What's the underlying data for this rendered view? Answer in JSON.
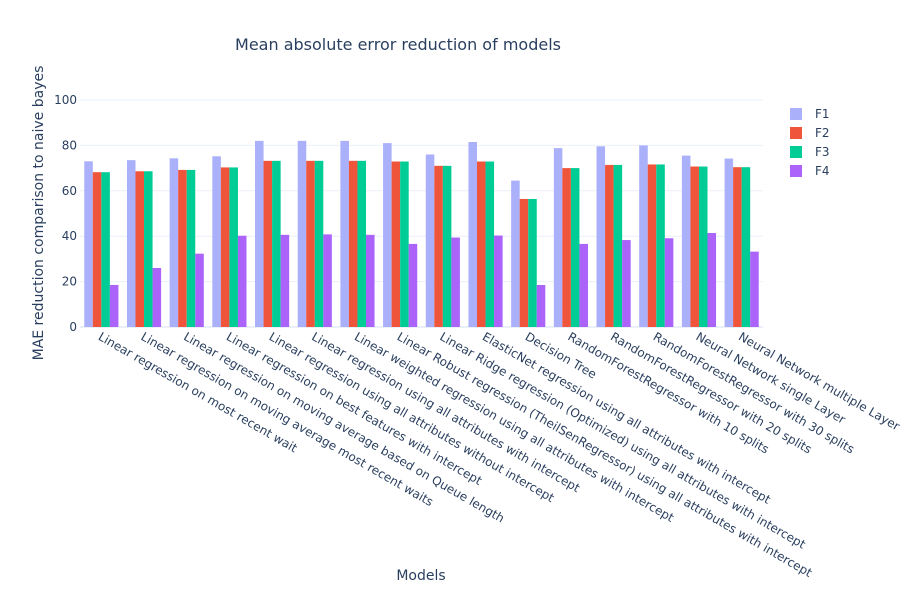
{
  "chart_data": {
    "type": "bar",
    "title": "Mean absolute error reduction of models",
    "xlabel": "Models",
    "ylabel": "MAE reduction comparison to naive bayes",
    "ylim": [
      0,
      100
    ],
    "yticks": [
      0,
      20,
      40,
      60,
      80,
      100
    ],
    "grid": true,
    "legend_position": "top-right",
    "categories": [
      "Linear regression on most recent wait",
      "Linear regression on moving average most recent waits",
      "Linear regression on moving average based on Queue length",
      "Linear regression on best features with intercept",
      "Linear regression using all attributes without intercept",
      "Linear regression using all attributes with intercept",
      "Linear weighted regression using all attributes with intercept",
      "Linear Robust regression (TheilSenRegressor) using all attributes with intercept",
      "Linear Ridge regression (Optimized) using all attributes with intercept",
      "ElasticNet regression using all attributes with intercept",
      "Decision Tree",
      "RandomForestRegressor with 10 splits",
      "RandomForestRegressor with 20 splits",
      "RandomForestRegressor with 30 splits",
      "Neural Network single Layer",
      "Neural Network multiple Layer"
    ],
    "series": [
      {
        "name": "F1",
        "color": "#aab0f9",
        "values": [
          73,
          73.5,
          74.3,
          75.2,
          82,
          82,
          82,
          81,
          76,
          81.5,
          64.5,
          78.8,
          79.6,
          80,
          75.5,
          74.2
        ]
      },
      {
        "name": "F2",
        "color": "#ef553b",
        "values": [
          68.2,
          68.6,
          69.2,
          70.3,
          73.2,
          73.2,
          73.2,
          72.9,
          71,
          72.9,
          56.4,
          70,
          71.4,
          71.6,
          70.7,
          70.4
        ]
      },
      {
        "name": "F3",
        "color": "#00cc96",
        "values": [
          68.2,
          68.6,
          69.2,
          70.3,
          73.2,
          73.2,
          73.2,
          72.9,
          71,
          72.9,
          56.4,
          70,
          71.4,
          71.6,
          70.7,
          70.4
        ]
      },
      {
        "name": "F4",
        "color": "#ab63fa",
        "values": [
          18.5,
          26,
          32.3,
          40.2,
          40.6,
          40.8,
          40.6,
          36.6,
          39.4,
          40.3,
          18.5,
          36.6,
          38.3,
          39.1,
          41.4,
          33.2
        ]
      }
    ]
  }
}
